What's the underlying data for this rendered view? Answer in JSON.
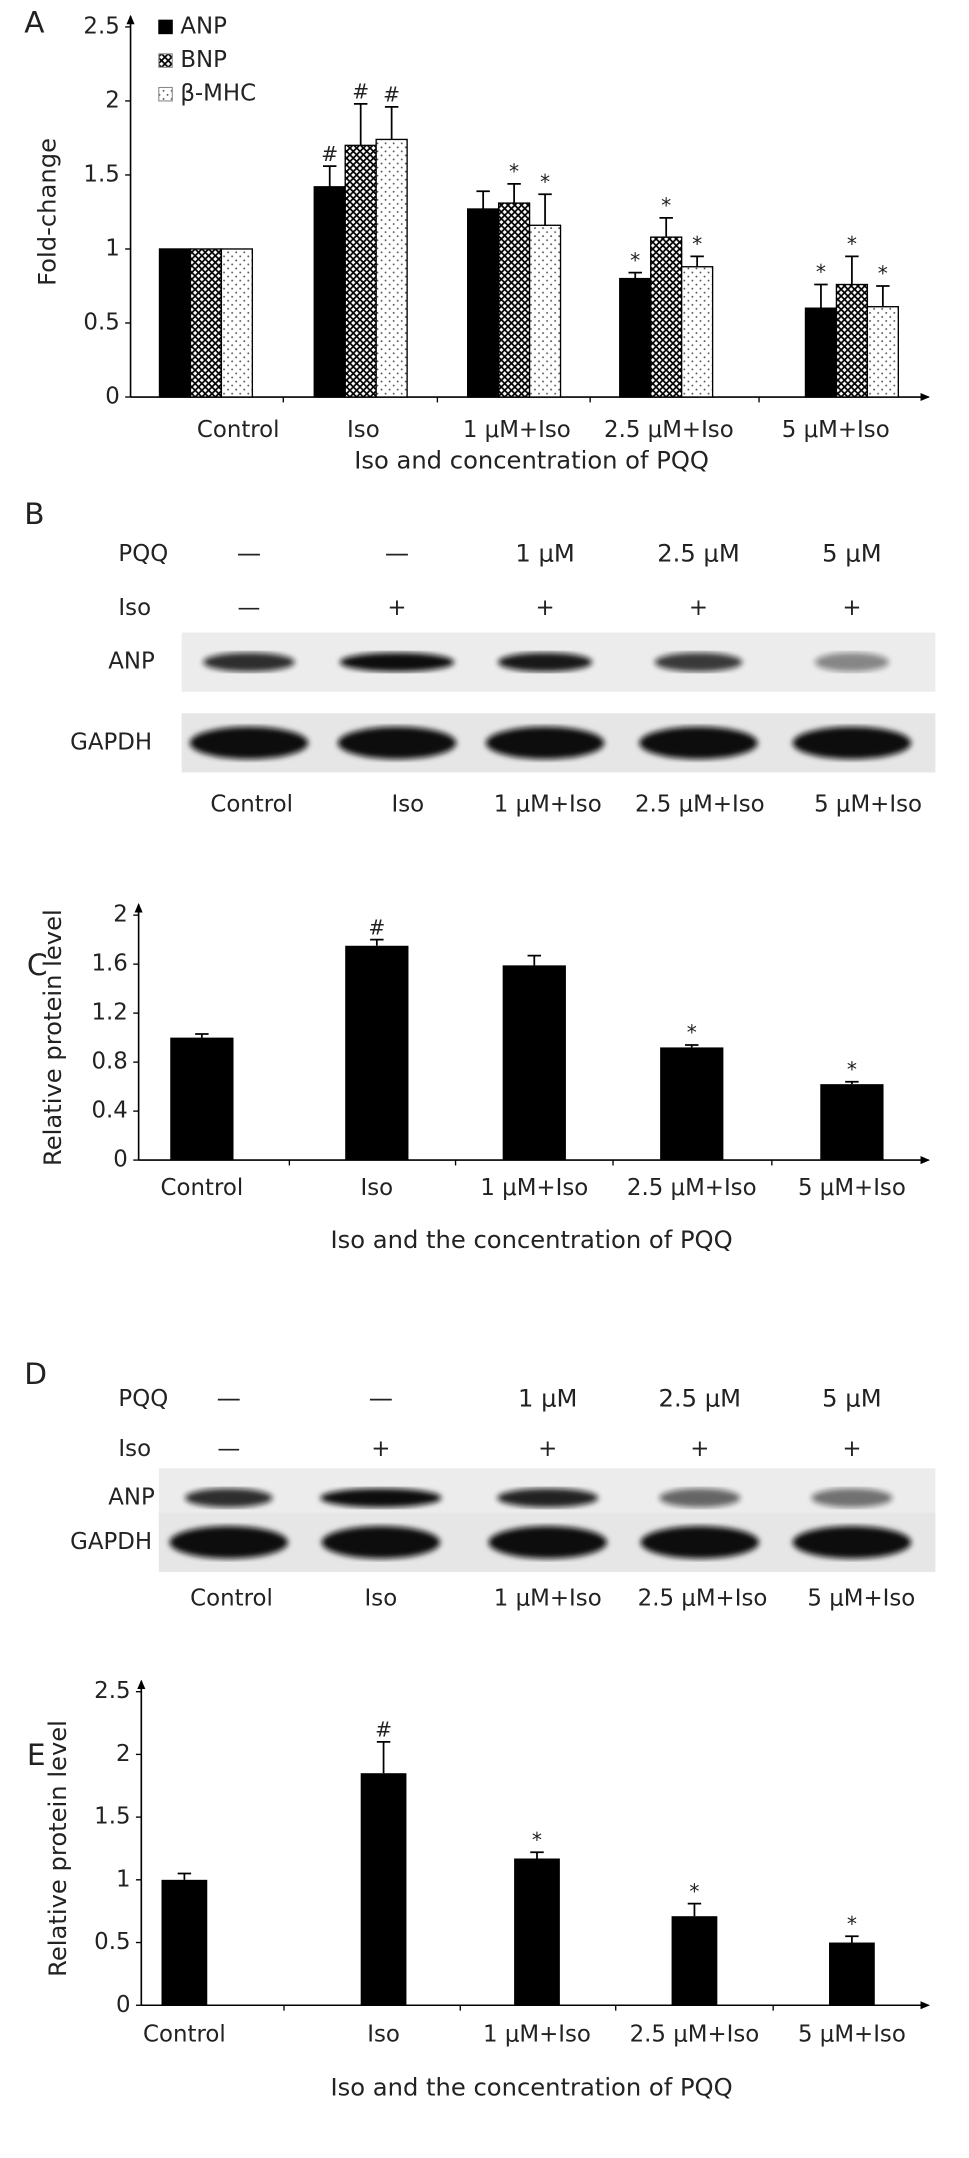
{
  "chart_data": [
    {
      "type": "grouped-bar",
      "panel": "A",
      "categories": [
        "Control",
        "Iso",
        "1 μM+Iso",
        "2.5 μM+Iso",
        "5 μM+Iso"
      ],
      "series": [
        {
          "name": "ANP",
          "color": "#000000",
          "pattern": "solid",
          "values": [
            1,
            1.42,
            1.27,
            0.8,
            0.6
          ],
          "errors": [
            0,
            0.14,
            0.12,
            0.04,
            0.16
          ],
          "markers": [
            null,
            "#",
            null,
            "*",
            "*"
          ]
        },
        {
          "name": "BNP",
          "color": "#000000",
          "pattern": "crosshatch",
          "values": [
            1,
            1.7,
            1.31,
            1.08,
            0.76
          ],
          "errors": [
            0,
            0.28,
            0.13,
            0.13,
            0.19
          ],
          "markers": [
            null,
            "#",
            "*",
            "*",
            "*"
          ]
        },
        {
          "name": "β-MHC",
          "color": "#000000",
          "pattern": "dots",
          "values": [
            1,
            1.74,
            1.16,
            0.88,
            0.61
          ],
          "errors": [
            0,
            0.22,
            0.21,
            0.07,
            0.14
          ],
          "markers": [
            null,
            "#",
            "*",
            "*",
            "*"
          ]
        }
      ],
      "ylim": [
        0,
        2.5
      ],
      "yticks": [
        0,
        0.5,
        1,
        1.5,
        2,
        2.5
      ],
      "ylabel": "Fold-change",
      "xlabel": "Iso and concentration of PQQ",
      "legend": "top-left"
    },
    {
      "type": "bar",
      "panel": "C",
      "color": "#000000",
      "categories": [
        "Control",
        "Iso",
        "1 μM+Iso",
        "2.5 μM+Iso",
        "5 μM+Iso"
      ],
      "values": [
        1,
        1.75,
        1.59,
        0.92,
        0.62
      ],
      "errors": [
        0.03,
        0.05,
        0.08,
        0.02,
        0.02
      ],
      "markers": [
        null,
        "#",
        null,
        "*",
        "*"
      ],
      "ylim": [
        0,
        2
      ],
      "yticks": [
        0,
        0.4,
        0.8,
        1.2,
        1.6,
        2
      ],
      "ylabel": "Relative protein level",
      "xlabel": "Iso and the concentration of PQQ"
    },
    {
      "type": "bar",
      "panel": "E",
      "color": "#000000",
      "categories": [
        "Control",
        "Iso",
        "1 μM+Iso",
        "2.5 μM+Iso",
        "5 μM+Iso"
      ],
      "values": [
        1,
        1.85,
        1.17,
        0.71,
        0.5
      ],
      "errors": [
        0.05,
        0.25,
        0.05,
        0.1,
        0.05
      ],
      "markers": [
        null,
        "#",
        "*",
        "*",
        "*"
      ],
      "ylim": [
        0,
        2.5
      ],
      "yticks": [
        0,
        0.5,
        1,
        1.5,
        2,
        2.5
      ],
      "ylabel": "Relative protein level",
      "xlabel": "Iso and the concentration of PQQ"
    }
  ],
  "blots": [
    {
      "panel": "B",
      "pqq_label": "PQQ",
      "iso_label": "Iso",
      "rows": [
        "ANP",
        "GAPDH"
      ],
      "pqq": [
        "—",
        "—",
        "1 μM",
        "2.5 μM",
        "5 μM"
      ],
      "iso": [
        "—",
        "+",
        "+",
        "+",
        "+"
      ],
      "lanes": [
        "Control",
        "Iso",
        "1 μM+Iso",
        "2.5 μM+Iso",
        "5 μM+Iso"
      ]
    },
    {
      "panel": "D",
      "pqq_label": "PQQ",
      "iso_label": "Iso",
      "rows": [
        "ANP",
        "GAPDH"
      ],
      "pqq": [
        "—",
        "—",
        "1 μM",
        "2.5 μM",
        "5 μM"
      ],
      "iso": [
        "—",
        "+",
        "+",
        "+",
        "+"
      ],
      "lanes": [
        "Control",
        "Iso",
        "1 μM+Iso",
        "2.5 μM+Iso",
        "5 μM+Iso"
      ]
    }
  ]
}
